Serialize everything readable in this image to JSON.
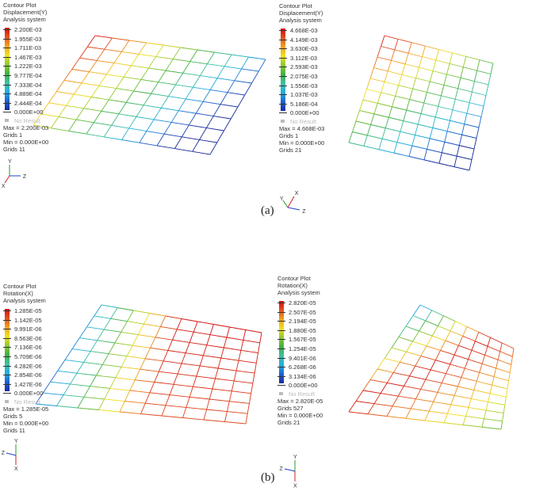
{
  "panels": [
    {
      "title": "Contour Plot",
      "quantity": "Displacement(Y)",
      "system": "Analysis system",
      "ticks": [
        "2.200E-03",
        "1.955E-03",
        "1.711E-03",
        "1.467E-03",
        "1.222E-03",
        "9.777E-04",
        "7.333E-04",
        "4.889E-04",
        "2.444E-04",
        "0.000E+00"
      ],
      "no_result": "No Result",
      "max": "Max = 2.200E-03",
      "max_grid": "Grids 1",
      "min": "Min = 0.000E+00",
      "min_grid": "Grids 11"
    },
    {
      "title": "Contour Plot",
      "quantity": "Displacement(Y)",
      "system": "Analysis system",
      "ticks": [
        "4.668E-03",
        "4.149E-03",
        "3.630E-03",
        "3.112E-03",
        "2.593E-03",
        "2.075E-03",
        "1.556E-03",
        "1.037E-03",
        "5.186E-04",
        "0.000E+00"
      ],
      "no_result": "No Result",
      "max": "Max = 4.668E-03",
      "max_grid": "Grids 1",
      "min": "Min = 0.000E+00",
      "min_grid": "Grids 21"
    },
    {
      "title": "Contour Plot",
      "quantity": "Rotation(X)",
      "system": "Analysis system",
      "ticks": [
        "1.285E-05",
        "1.142E-05",
        "9.991E-06",
        "8.563E-06",
        "7.136E-06",
        "5.709E-06",
        "4.282E-06",
        "2.854E-06",
        "1.427E-06",
        "0.000E+00"
      ],
      "no_result": "No Result",
      "max": "Max = 1.285E-05",
      "max_grid": "Grids 5",
      "min": "Min = 0.000E+00",
      "min_grid": "Grids 11"
    },
    {
      "title": "Contour Plot",
      "quantity": "Rotation(X)",
      "system": "Analysis system",
      "ticks": [
        "2.820E-05",
        "2.507E-05",
        "2.194E-05",
        "1.880E-05",
        "1.567E-05",
        "1.254E-05",
        "9.401E-06",
        "6.268E-06",
        "3.134E-06",
        "0.000E+00"
      ],
      "no_result": "No Result",
      "max": "Max = 2.820E-05",
      "max_grid": "Grids 527",
      "min": "Min = 0.000E+00",
      "min_grid": "Grids 21"
    }
  ],
  "captions": {
    "a": "(a)",
    "b": "(b)"
  },
  "axes": {
    "x": "X",
    "y": "Y",
    "z": "Z"
  },
  "colormap": [
    "#1a2a9a",
    "#2060d0",
    "#20b0e0",
    "#40c0a0",
    "#40b040",
    "#90c830",
    "#f0e020",
    "#f0a020",
    "#e05020",
    "#d01010"
  ]
}
